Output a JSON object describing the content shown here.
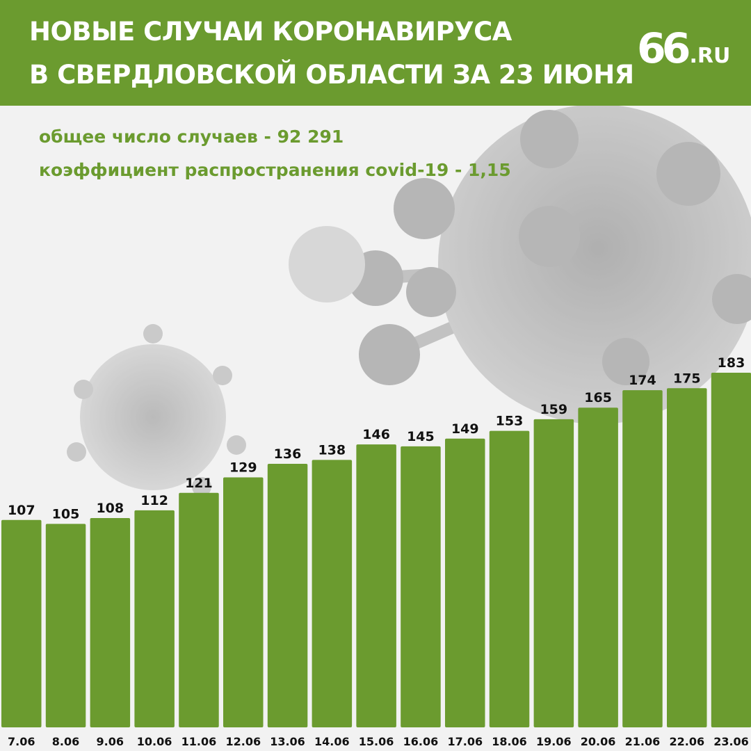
{
  "header": {
    "title_line1": "НОВЫЕ СЛУЧАИ КОРОНАВИРУСА",
    "title_line2": "В СВЕРДЛОВСКОЙ ОБЛАСТИ ЗА 23 ИЮНЯ",
    "logo_number": "66",
    "logo_suffix": ".RU"
  },
  "summary": {
    "total_cases": "общее число случаев - 92 291",
    "spread_coefficient": "коэффициент распространения covid-19 - 1,15"
  },
  "colors": {
    "accent": "#6b9b2f",
    "background": "#f2f2f2",
    "label": "#111111"
  },
  "chart_data": {
    "type": "bar",
    "categories": [
      "7.06",
      "8.06",
      "9.06",
      "10.06",
      "11.06",
      "12.06",
      "13.06",
      "14.06",
      "15.06",
      "16.06",
      "17.06",
      "18.06",
      "19.06",
      "20.06",
      "21.06",
      "22.06",
      "23.06"
    ],
    "values": [
      107,
      105,
      108,
      112,
      121,
      129,
      136,
      138,
      146,
      145,
      149,
      153,
      159,
      165,
      174,
      175,
      183
    ],
    "title": "НОВЫЕ СЛУЧАИ КОРОНАВИРУСА В СВЕРДЛОВСКОЙ ОБЛАСТИ ЗА 23 ИЮНЯ",
    "xlabel": "",
    "ylabel": "",
    "grid": false,
    "data_labels": true
  }
}
